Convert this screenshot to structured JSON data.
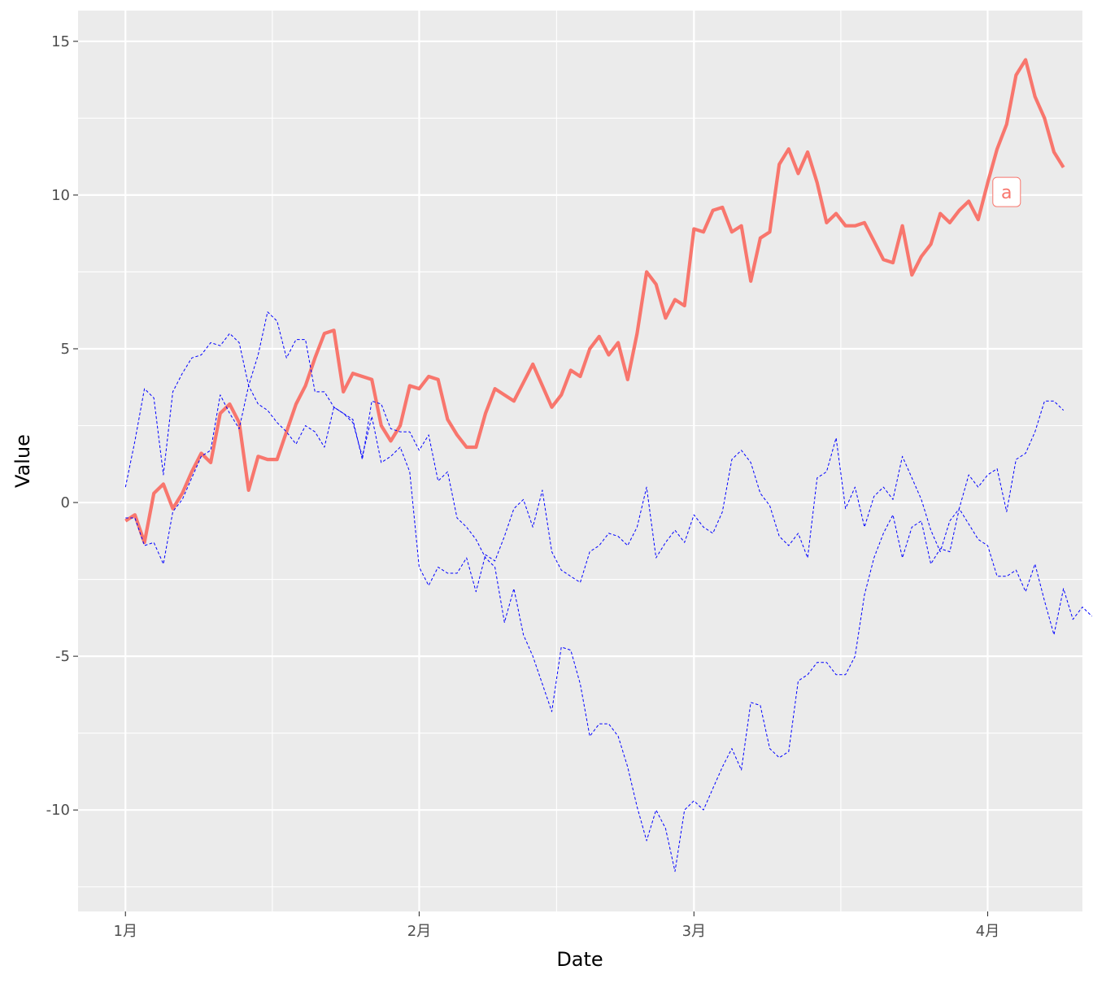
{
  "chart_data": {
    "type": "line",
    "title": "",
    "xlabel": "Date",
    "ylabel": "Value",
    "x_ticks": [
      {
        "date": "2024-01-01",
        "label": "1月"
      },
      {
        "date": "2024-02-01",
        "label": "2月"
      },
      {
        "date": "2024-03-01",
        "label": "3月"
      },
      {
        "date": "2024-04-01",
        "label": "4月"
      }
    ],
    "y_ticks": [
      -10,
      -5,
      0,
      5,
      10,
      15
    ],
    "xlim": [
      "2023-12-27",
      "2024-04-11"
    ],
    "ylim": [
      -13.3,
      16.0
    ],
    "grid": true,
    "legend": "none",
    "background": "#ebebeb",
    "grid_color": "#ffffff",
    "series": [
      {
        "color": "#f8766d",
        "style": "solid",
        "emphasis": "thick",
        "x_start": "2024-01-01",
        "x_step_days": 1,
        "values": [
          -0.6,
          -0.4,
          -1.3,
          0.3,
          0.6,
          -0.2,
          0.3,
          1.0,
          1.6,
          1.3,
          2.9,
          3.2,
          2.6,
          0.4,
          1.5,
          1.4,
          1.4,
          2.3,
          3.2,
          3.8,
          4.7,
          5.5,
          5.6,
          3.6,
          4.2,
          4.1,
          4.0,
          2.5,
          2.0,
          2.5,
          3.8,
          3.7,
          4.1,
          4.0,
          2.7,
          2.2,
          1.8,
          1.8,
          2.9,
          3.7,
          3.5,
          3.3,
          3.9,
          4.5,
          3.8,
          3.1,
          3.5,
          4.3,
          4.1,
          5.0,
          5.4,
          4.8,
          5.2,
          4.0,
          5.5,
          7.5,
          7.1,
          6.0,
          6.6,
          6.4,
          8.9,
          8.8,
          9.5,
          9.6,
          8.8,
          9.0,
          7.2,
          8.6,
          8.8,
          11.0,
          11.5,
          10.7,
          11.4,
          10.4,
          9.1,
          9.4,
          9.0,
          9.0,
          9.1,
          8.5,
          7.9,
          7.8,
          9.0,
          7.4,
          8.0,
          8.4,
          9.4,
          9.1,
          9.5,
          9.8,
          9.2,
          10.4,
          11.5,
          12.3,
          13.9,
          14.4,
          13.2,
          12.5,
          11.4,
          10.9
        ]
      },
      {
        "color": "#0000ff",
        "style": "dashed",
        "x_start": "2024-01-01",
        "x_step_days": 1,
        "values": [
          -0.5,
          -0.5,
          -1.4,
          -1.3,
          -2.0,
          -0.3,
          0.1,
          0.8,
          1.5,
          1.7,
          3.5,
          2.9,
          2.4,
          3.8,
          3.2,
          3.0,
          2.6,
          2.3,
          1.9,
          2.5,
          2.3,
          1.8,
          3.1,
          2.9,
          2.7,
          1.4,
          3.3,
          3.2,
          2.4,
          2.3,
          2.3,
          1.7,
          2.2,
          0.7,
          1.0,
          -0.5,
          -0.8,
          -1.2,
          -1.8,
          -2.1,
          -3.9,
          -2.8,
          -4.3,
          -5.0,
          -5.9,
          -6.8,
          -4.7,
          -4.8,
          -5.9,
          -7.6,
          -7.2,
          -7.2,
          -7.6,
          -8.6,
          -9.9,
          -11.0,
          -10.0,
          -10.6,
          -12.0,
          -10.0,
          -9.7,
          -10.0,
          -9.3,
          -8.6,
          -8.0,
          -8.7,
          -6.5,
          -6.6,
          -8.0,
          -8.3,
          -8.1,
          -5.8,
          -5.6,
          -5.2,
          -5.2,
          -5.6,
          -5.6,
          -5.0,
          -3.0,
          -1.8,
          -1.0,
          -0.4,
          -1.8,
          -0.8,
          -0.6,
          -2.0,
          -1.5,
          -1.6,
          -0.2,
          -0.7,
          -1.2,
          -1.4,
          -2.4,
          -2.4,
          -2.2,
          -2.9,
          -2.0,
          -3.2,
          -4.3,
          -2.8,
          -3.8,
          -3.4,
          -3.7
        ]
      },
      {
        "color": "#0000ff",
        "style": "dashed",
        "x_start": "2024-01-01",
        "x_step_days": 1,
        "values": [
          0.5,
          2.0,
          3.7,
          3.4,
          0.9,
          3.6,
          4.2,
          4.7,
          4.8,
          5.2,
          5.1,
          5.5,
          5.2,
          3.8,
          4.8,
          6.2,
          5.9,
          4.7,
          5.3,
          5.3,
          3.6,
          3.6,
          3.1,
          2.9,
          2.6,
          1.5,
          2.8,
          1.3,
          1.5,
          1.8,
          1.0,
          -2.1,
          -2.7,
          -2.1,
          -2.3,
          -2.3,
          -1.8,
          -2.9,
          -1.7,
          -1.9,
          -1.1,
          -0.2,
          0.1,
          -0.8,
          0.4,
          -1.6,
          -2.2,
          -2.4,
          -2.6,
          -1.6,
          -1.4,
          -1.0,
          -1.1,
          -1.4,
          -0.8,
          0.5,
          -1.8,
          -1.3,
          -0.9,
          -1.3,
          -0.4,
          -0.8,
          -1.0,
          -0.3,
          1.4,
          1.7,
          1.3,
          0.3,
          -0.1,
          -1.1,
          -1.4,
          -1.0,
          -1.8,
          0.8,
          1.0,
          2.1,
          -0.2,
          0.5,
          -0.8,
          0.2,
          0.5,
          0.1,
          1.5,
          0.8,
          0.1,
          -0.9,
          -1.6,
          -0.6,
          -0.2,
          0.9,
          0.5,
          0.9,
          1.1,
          -0.3,
          1.4,
          1.6,
          2.3,
          3.3,
          3.3,
          3.0
        ]
      }
    ],
    "annotations": [
      {
        "text": "a",
        "date": "2024-04-03",
        "y": 10.1,
        "color": "#f8766d"
      }
    ]
  }
}
